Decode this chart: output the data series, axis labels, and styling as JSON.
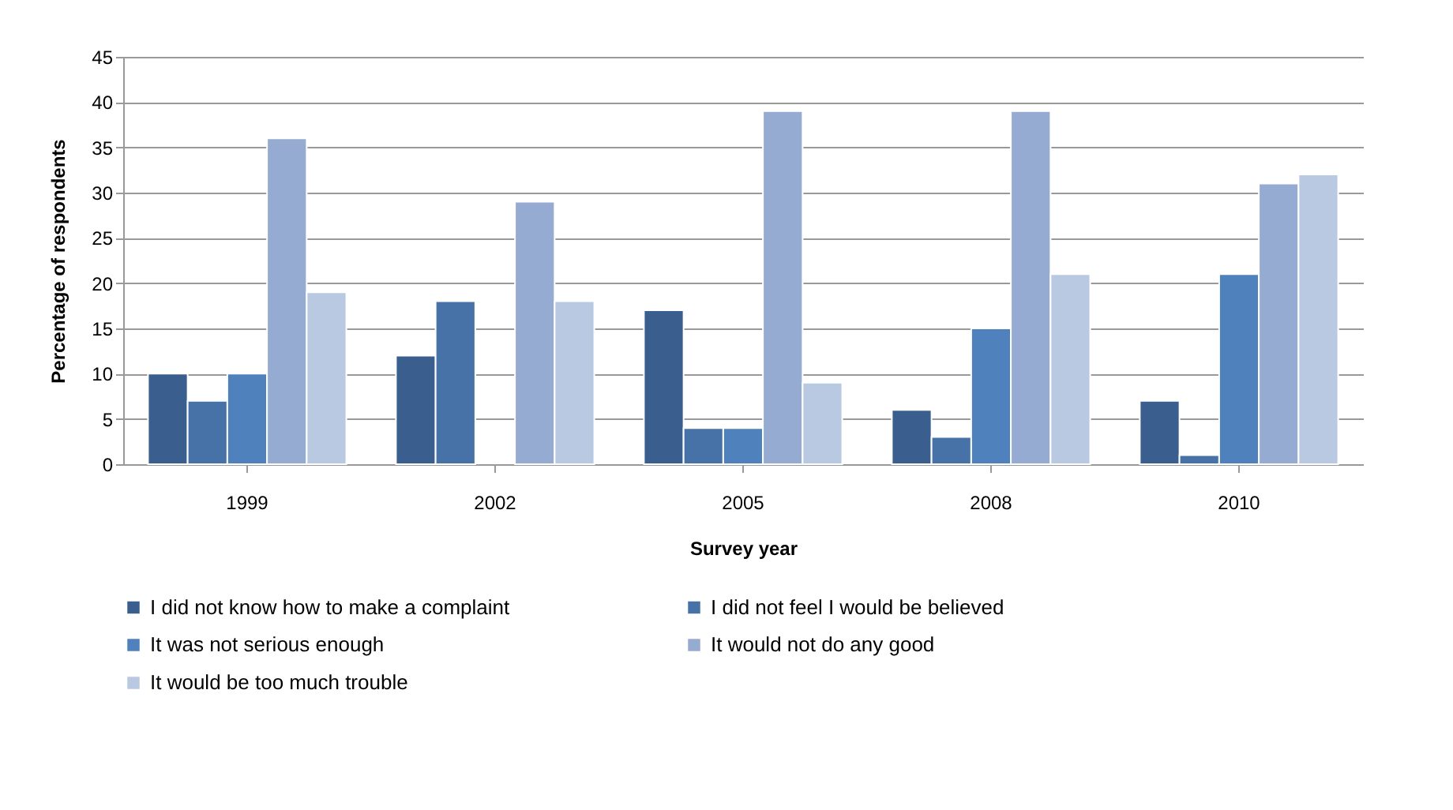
{
  "chart_data": {
    "type": "bar",
    "xlabel": "Survey year",
    "ylabel": "Percentage of respondents",
    "categories": [
      "1999",
      "2002",
      "2005",
      "2008",
      "2010"
    ],
    "series": [
      {
        "name": "I did not know how to make a complaint",
        "color": "#3a5f8e",
        "values": [
          10,
          12,
          17,
          6,
          7
        ]
      },
      {
        "name": "I did not feel I would be believed",
        "color": "#4672a8",
        "values": [
          7,
          18,
          4,
          3,
          1
        ]
      },
      {
        "name": "It was not serious enough",
        "color": "#4f81bd",
        "values": [
          10,
          null,
          4,
          15,
          21
        ]
      },
      {
        "name": "It would not do any good",
        "color": "#95abd2",
        "values": [
          36,
          29,
          39,
          39,
          31
        ]
      },
      {
        "name": "It would be too much trouble",
        "color": "#bac9e2",
        "values": [
          19,
          18,
          9,
          21,
          32
        ]
      }
    ],
    "ylim": [
      0,
      45
    ],
    "yticks": [
      0,
      5,
      10,
      15,
      20,
      25,
      30,
      35,
      40,
      45
    ],
    "grid": "y",
    "legend": "bottom"
  }
}
